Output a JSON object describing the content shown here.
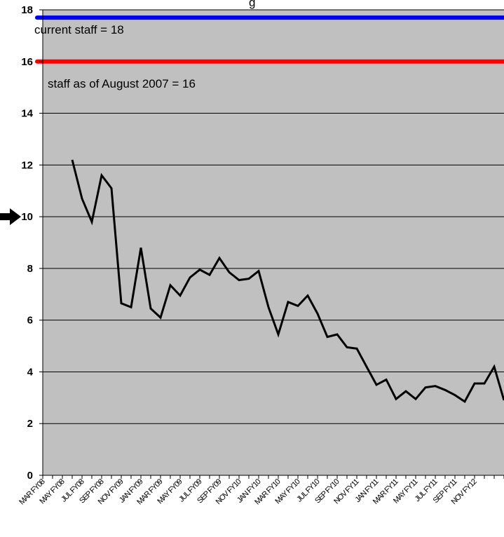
{
  "chart_data": {
    "type": "line",
    "title_fragment": "g",
    "ylim": [
      0,
      18
    ],
    "yticks": [
      "0",
      "2",
      "4",
      "6",
      "8",
      "10",
      "12",
      "14",
      "16",
      "18"
    ],
    "grid": true,
    "background": "#c0c0c0",
    "x_tick_labels": [
      "MAR FY08",
      "MAY FY08",
      "JUL FY08",
      "SEP FY08",
      "NOV FY09",
      "JAN FY09",
      "MAR FY09",
      "MAY FY09",
      "JUL FY09",
      "SEP FY09",
      "NOV FY10",
      "JAN FY10",
      "MAR FY10",
      "MAY FY10",
      "JUL FY10",
      "SEP FY10",
      "NOV FY11",
      "JAN FY11",
      "MAR FY11",
      "MAY FY11",
      "JUL FY11",
      "SEP FY11",
      "NOV FY12"
    ],
    "series": [
      {
        "color": "#000000",
        "values": [
          null,
          null,
          null,
          12.2,
          10.7,
          9.8,
          11.6,
          11.1,
          6.65,
          6.5,
          8.8,
          6.45,
          6.1,
          7.35,
          6.95,
          7.65,
          7.95,
          7.75,
          8.4,
          7.85,
          7.55,
          7.6,
          7.9,
          6.5,
          5.45,
          6.7,
          6.55,
          6.95,
          6.25,
          5.35,
          5.45,
          4.95,
          4.9,
          4.2,
          3.5,
          3.7,
          2.95,
          3.25,
          2.95,
          3.4,
          3.45,
          3.3,
          3.1,
          2.85,
          3.55,
          3.55,
          4.2,
          2.9
        ]
      }
    ],
    "reference_lines": [
      {
        "value": 17.7,
        "color": "#0000ee",
        "label": "current staff = 18"
      },
      {
        "value": 16,
        "color": "#ff0000",
        "label": "staff as of August 2007 = 16"
      }
    ],
    "marker": {
      "value": 10,
      "shape": "arrow",
      "color": "#000000"
    }
  }
}
